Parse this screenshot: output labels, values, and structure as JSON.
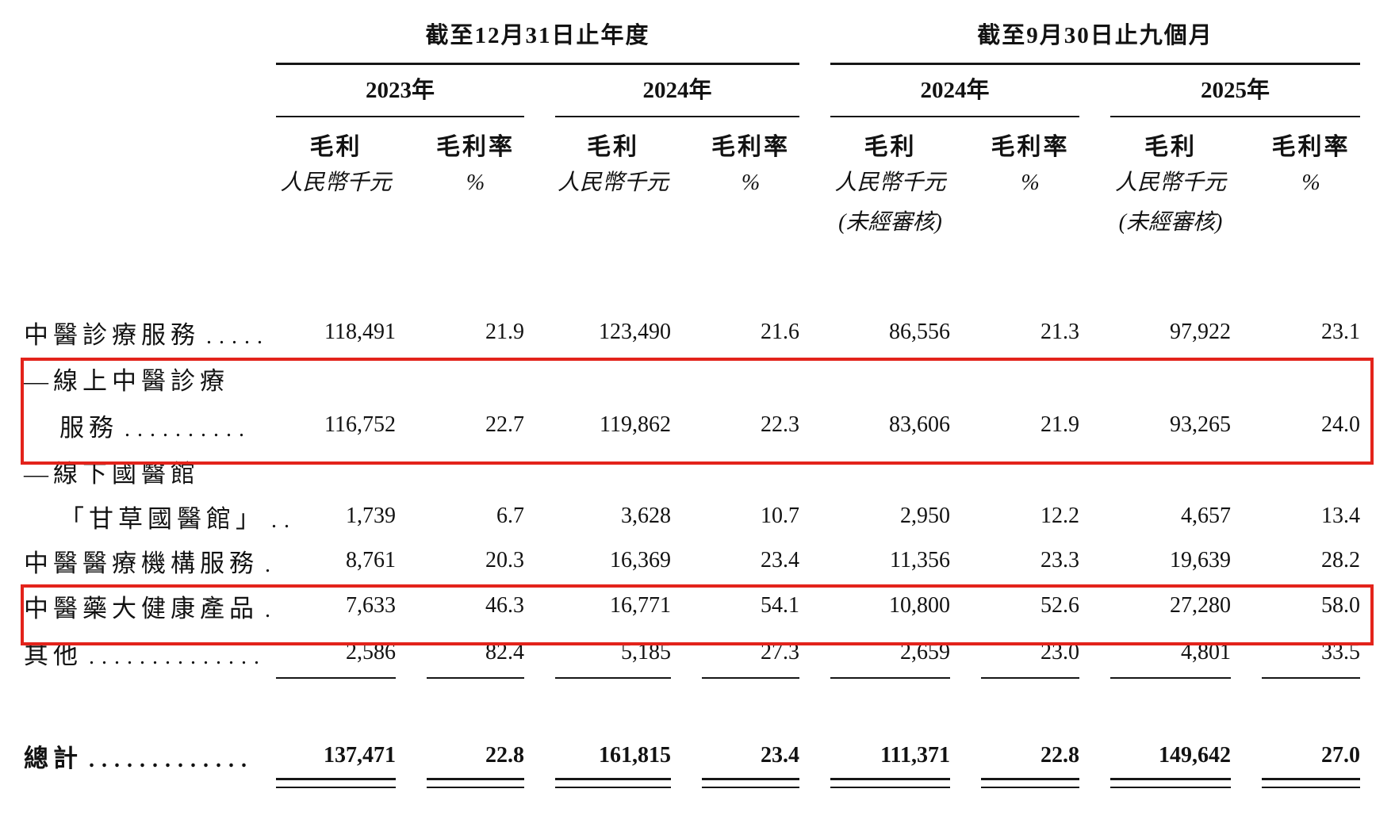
{
  "header": {
    "group1": {
      "title": "截至12月31日止年度"
    },
    "group2": {
      "title": "截至9月30日止九個月"
    },
    "years": [
      "2023年",
      "2024年",
      "2024年",
      "2025年"
    ],
    "col": {
      "gross_profit": "毛利",
      "gross_margin": "毛利率",
      "unit_rmb": "人民幣千元",
      "unit_pct": "%",
      "unaudited": "(未經審核)"
    }
  },
  "rows": [
    {
      "label": "中醫診療服務",
      "dots": ". . . . .",
      "v": [
        "118,491",
        "21.9",
        "123,490",
        "21.6",
        "86,556",
        "21.3",
        "97,922",
        "23.1"
      ]
    },
    {
      "label": "—線上中醫診療",
      "label2": "服務",
      "dots2": ". . . . . . . . . .",
      "v": [
        "116,752",
        "22.7",
        "119,862",
        "22.3",
        "83,606",
        "21.9",
        "93,265",
        "24.0"
      ],
      "highlighted": true
    },
    {
      "label": "—線下國醫館",
      "label2": "「甘草國醫館」",
      "dots2": ". .",
      "v": [
        "1,739",
        "6.7",
        "3,628",
        "10.7",
        "2,950",
        "12.2",
        "4,657",
        "13.4"
      ]
    },
    {
      "label": "中醫醫療機構服務",
      "dots": ".",
      "v": [
        "8,761",
        "20.3",
        "16,369",
        "23.4",
        "11,356",
        "23.3",
        "19,639",
        "28.2"
      ]
    },
    {
      "label": "中醫藥大健康產品",
      "dots": ".",
      "v": [
        "7,633",
        "46.3",
        "16,771",
        "54.1",
        "10,800",
        "52.6",
        "27,280",
        "58.0"
      ],
      "highlighted": true
    },
    {
      "label": "其他",
      "dots": ". . . . . . . . . . . . . .",
      "v": [
        "2,586",
        "82.4",
        "5,185",
        "27.3",
        "2,659",
        "23.0",
        "4,801",
        "33.5"
      ]
    }
  ],
  "total": {
    "label": "總計",
    "dots": ". . . . . . . . . . . . .",
    "v": [
      "137,471",
      "22.8",
      "161,815",
      "23.4",
      "111,371",
      "22.8",
      "149,642",
      "27.0"
    ]
  },
  "annotation": {
    "highlight_color": "#e3231b"
  }
}
